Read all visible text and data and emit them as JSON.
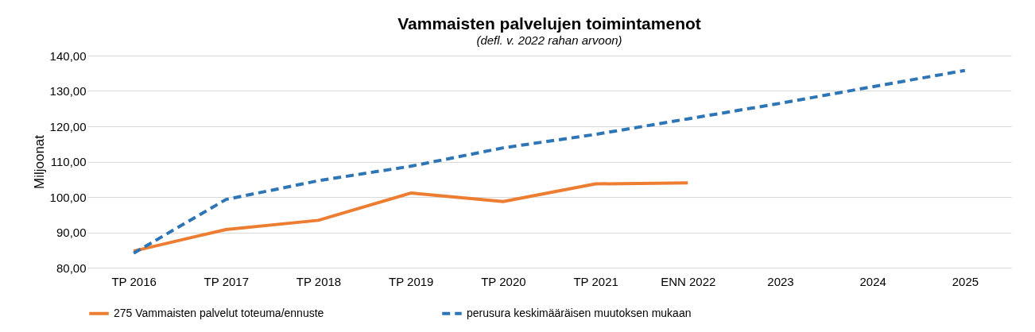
{
  "chart_data": {
    "type": "line",
    "title": "Vammaisten palvelujen toimintamenot",
    "subtitle": "(defl. v. 2022 rahan arvoon)",
    "ylabel": "Miljoonat",
    "categories": [
      "TP 2016",
      "TP 2017",
      "TP 2018",
      "TP 2019",
      "TP 2020",
      "TP 2021",
      "ENN 2022",
      "2023",
      "2024",
      "2025"
    ],
    "series": [
      {
        "name": "275 Vammaisten palvelut toteuma/ennuste",
        "color": "#ed7d31",
        "line_style": "solid",
        "values": [
          84.7,
          90.8,
          93.4,
          101.1,
          98.7,
          103.7,
          104.0,
          null,
          null,
          null
        ]
      },
      {
        "name": "perusura keskimääräisen muutoksen mukaan",
        "color": "#2e75b6",
        "line_style": "dashed",
        "values": [
          84.1,
          99.3,
          104.6,
          108.7,
          113.9,
          117.7,
          122.1,
          126.5,
          131.2,
          135.8
        ]
      }
    ],
    "ylim": [
      80,
      140
    ],
    "yticks": [
      {
        "value": 80,
        "label": "80,00"
      },
      {
        "value": 90,
        "label": "90,00"
      },
      {
        "value": 100,
        "label": "100,00"
      },
      {
        "value": 110,
        "label": "110,00"
      },
      {
        "value": 120,
        "label": "120,00"
      },
      {
        "value": 130,
        "label": "130,00"
      },
      {
        "value": 140,
        "label": "140,00"
      }
    ],
    "grid": "y",
    "legend": "bottom",
    "marker": "none"
  }
}
